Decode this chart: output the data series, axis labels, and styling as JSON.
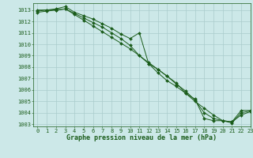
{
  "title": "Graphe pression niveau de la mer (hPa)",
  "bg_color": "#cce8e8",
  "grid_color": "#aacccc",
  "line_color": "#1a5c1a",
  "xlim_min": -0.5,
  "xlim_max": 23.0,
  "ylim_min": 1002.8,
  "ylim_max": 1013.6,
  "yticks": [
    1003,
    1004,
    1005,
    1006,
    1007,
    1008,
    1009,
    1010,
    1011,
    1012,
    1013
  ],
  "xticks": [
    0,
    1,
    2,
    3,
    4,
    5,
    6,
    7,
    8,
    9,
    10,
    11,
    12,
    13,
    14,
    15,
    16,
    17,
    18,
    19,
    20,
    21,
    22,
    23
  ],
  "series1": [
    1013.0,
    1013.0,
    1013.1,
    1013.3,
    1012.8,
    1012.5,
    1012.2,
    1011.8,
    1011.4,
    1010.9,
    1010.5,
    1011.0,
    1008.3,
    1007.5,
    1006.8,
    1006.3,
    1005.7,
    1005.2,
    1003.5,
    1003.3,
    1003.3,
    1003.2,
    1004.2,
    1004.2
  ],
  "series2": [
    1012.8,
    1012.9,
    1013.0,
    1013.1,
    1012.6,
    1012.1,
    1011.6,
    1011.1,
    1010.6,
    1010.1,
    1009.6,
    1009.0,
    1008.4,
    1007.8,
    1007.2,
    1006.6,
    1005.7,
    1005.0,
    1004.4,
    1003.8,
    1003.3,
    1003.2,
    1003.8,
    1004.1
  ],
  "series3": [
    1012.9,
    1013.0,
    1013.0,
    1013.1,
    1012.7,
    1012.3,
    1011.9,
    1011.5,
    1011.0,
    1010.5,
    1009.9,
    1009.0,
    1008.3,
    1007.8,
    1007.2,
    1006.5,
    1005.9,
    1005.1,
    1004.0,
    1003.5,
    1003.3,
    1003.1,
    1004.0,
    1004.15
  ],
  "title_fontsize": 6.0,
  "tick_fontsize": 5.0,
  "marker_size": 2.0,
  "line_width": 0.7
}
